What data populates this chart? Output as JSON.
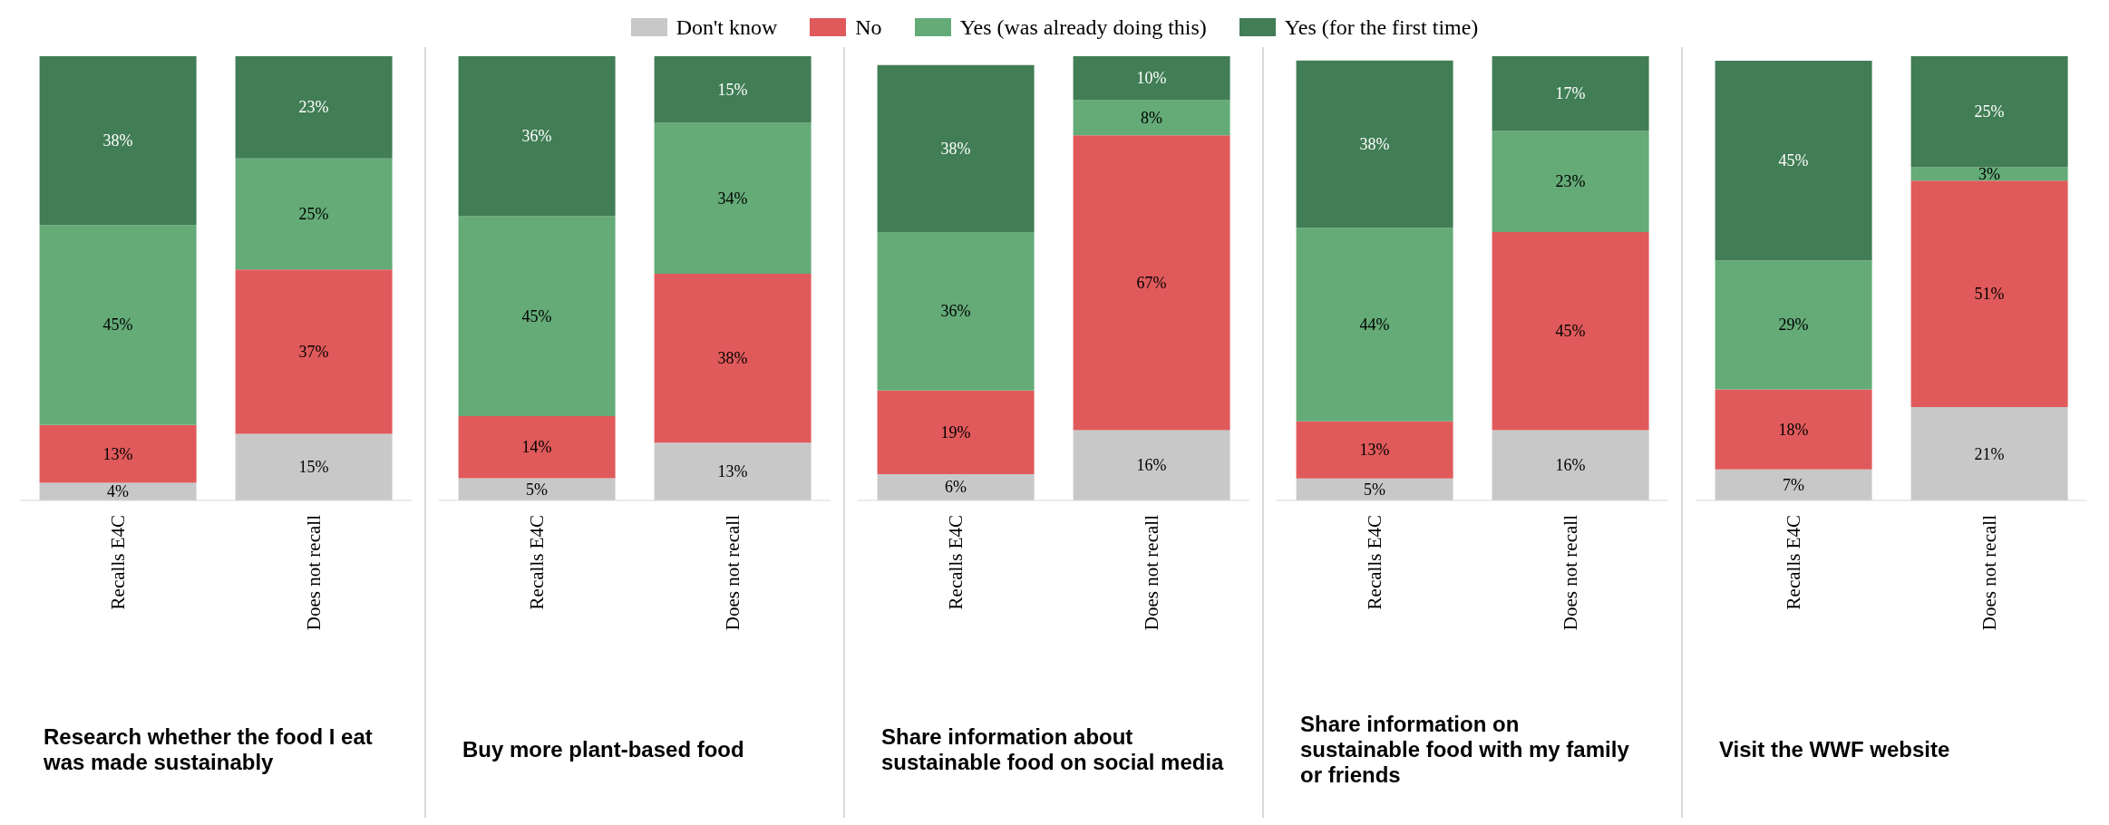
{
  "chart_data": [
    {
      "type": "bar",
      "stacked": true,
      "legend": "top",
      "xlabel": "Research whether the food I eat was made sustainably",
      "categories": [
        "Recalls E4C",
        "Does not recall"
      ],
      "series": [
        {
          "name": "Don't know",
          "color": "#c8c8c8",
          "values": [
            4,
            15
          ],
          "value_labels": [
            "4%",
            "15%"
          ]
        },
        {
          "name": "No",
          "color": "#e05a5b",
          "values": [
            13,
            37
          ],
          "value_labels": [
            "13%",
            "37%"
          ]
        },
        {
          "name": "Yes (was already doing this)",
          "color": "#64ab78",
          "values": [
            45,
            25
          ],
          "value_labels": [
            "45%",
            "25%"
          ]
        },
        {
          "name": "Yes (for the first time)",
          "color": "#417d55",
          "values": [
            38,
            23
          ],
          "value_labels": [
            "38%",
            "23%"
          ]
        }
      ]
    },
    {
      "type": "bar",
      "stacked": true,
      "xlabel": "Buy more plant-based food",
      "categories": [
        "Recalls E4C",
        "Does not recall"
      ],
      "series": [
        {
          "color": "#c8c8c8",
          "values": [
            5,
            13
          ],
          "value_labels": [
            "5%",
            "13%"
          ]
        },
        {
          "color": "#e05a5b",
          "values": [
            14,
            38
          ],
          "value_labels": [
            "14%",
            "38%"
          ]
        },
        {
          "color": "#64ab78",
          "values": [
            45,
            34
          ],
          "value_labels": [
            "45%",
            "34%"
          ]
        },
        {
          "color": "#417d55",
          "values": [
            36,
            15
          ],
          "value_labels": [
            "36%",
            "15%"
          ]
        }
      ]
    },
    {
      "type": "bar",
      "stacked": true,
      "xlabel": "Share information about sustainable food on social media",
      "categories": [
        "Recalls E4C",
        "Does not recall"
      ],
      "series": [
        {
          "color": "#c8c8c8",
          "values": [
            6,
            16
          ],
          "value_labels": [
            "6%",
            "16%"
          ]
        },
        {
          "color": "#e05a5b",
          "values": [
            19,
            67
          ],
          "value_labels": [
            "19%",
            "67%"
          ]
        },
        {
          "color": "#64ab78",
          "values": [
            36,
            8
          ],
          "value_labels": [
            "36%",
            "8%"
          ]
        },
        {
          "color": "#417d55",
          "values": [
            38,
            10
          ],
          "value_labels": [
            "38%",
            "10%"
          ]
        }
      ]
    },
    {
      "type": "bar",
      "stacked": true,
      "xlabel": "Share information on sustainable food with my family or friends",
      "categories": [
        "Recalls E4C",
        "Does not recall"
      ],
      "series": [
        {
          "color": "#c8c8c8",
          "values": [
            5,
            16
          ],
          "value_labels": [
            "5%",
            "16%"
          ]
        },
        {
          "color": "#e05a5b",
          "values": [
            13,
            45
          ],
          "value_labels": [
            "13%",
            "45%"
          ]
        },
        {
          "color": "#64ab78",
          "values": [
            44,
            23
          ],
          "value_labels": [
            "44%",
            "23%"
          ]
        },
        {
          "color": "#417d55",
          "values": [
            38,
            17
          ],
          "value_labels": [
            "38%",
            "17%"
          ]
        }
      ]
    },
    {
      "type": "bar",
      "stacked": true,
      "xlabel": "Visit the WWF website",
      "categories": [
        "Recalls E4C",
        "Does not recall"
      ],
      "series": [
        {
          "color": "#c8c8c8",
          "values": [
            7,
            21
          ],
          "value_labels": [
            "7%",
            "21%"
          ]
        },
        {
          "color": "#e05a5b",
          "values": [
            18,
            51
          ],
          "value_labels": [
            "18%",
            "51%"
          ]
        },
        {
          "color": "#64ab78",
          "values": [
            29,
            3
          ],
          "value_labels": [
            "29%",
            "3%"
          ]
        },
        {
          "color": "#417d55",
          "values": [
            45,
            25
          ],
          "value_labels": [
            "45%",
            "25%"
          ]
        }
      ]
    }
  ]
}
